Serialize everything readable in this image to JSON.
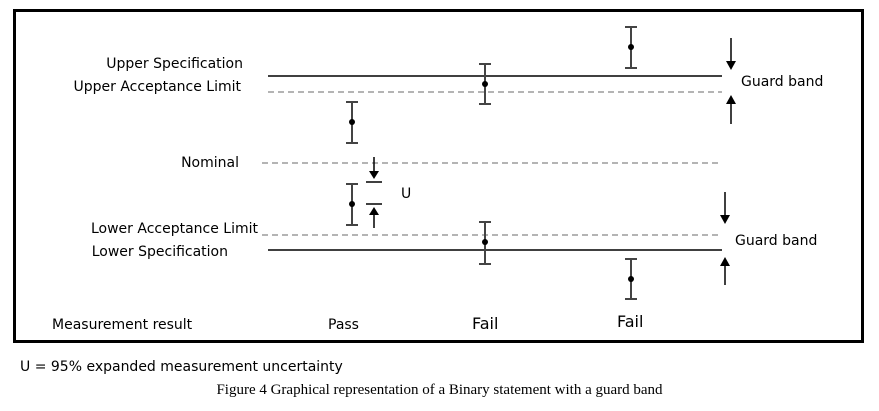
{
  "labels": {
    "upper_specification": "Upper Specification",
    "upper_acceptance_limit": "Upper Acceptance Limit",
    "nominal": "Nominal",
    "lower_acceptance_limit": "Lower Acceptance Limit",
    "lower_specification": "Lower Specification",
    "measurement_result": "Measurement result",
    "guard_band_top": "Guard band",
    "guard_band_bottom": "Guard band",
    "uncertainty_symbol": "U"
  },
  "results": {
    "pass": "Pass",
    "fail_1": "Fail",
    "fail_2": "Fail"
  },
  "footnote": "U = 95% expanded measurement uncertainty",
  "caption": "Figure 4 Graphical representation of a Binary statement with a guard band"
}
